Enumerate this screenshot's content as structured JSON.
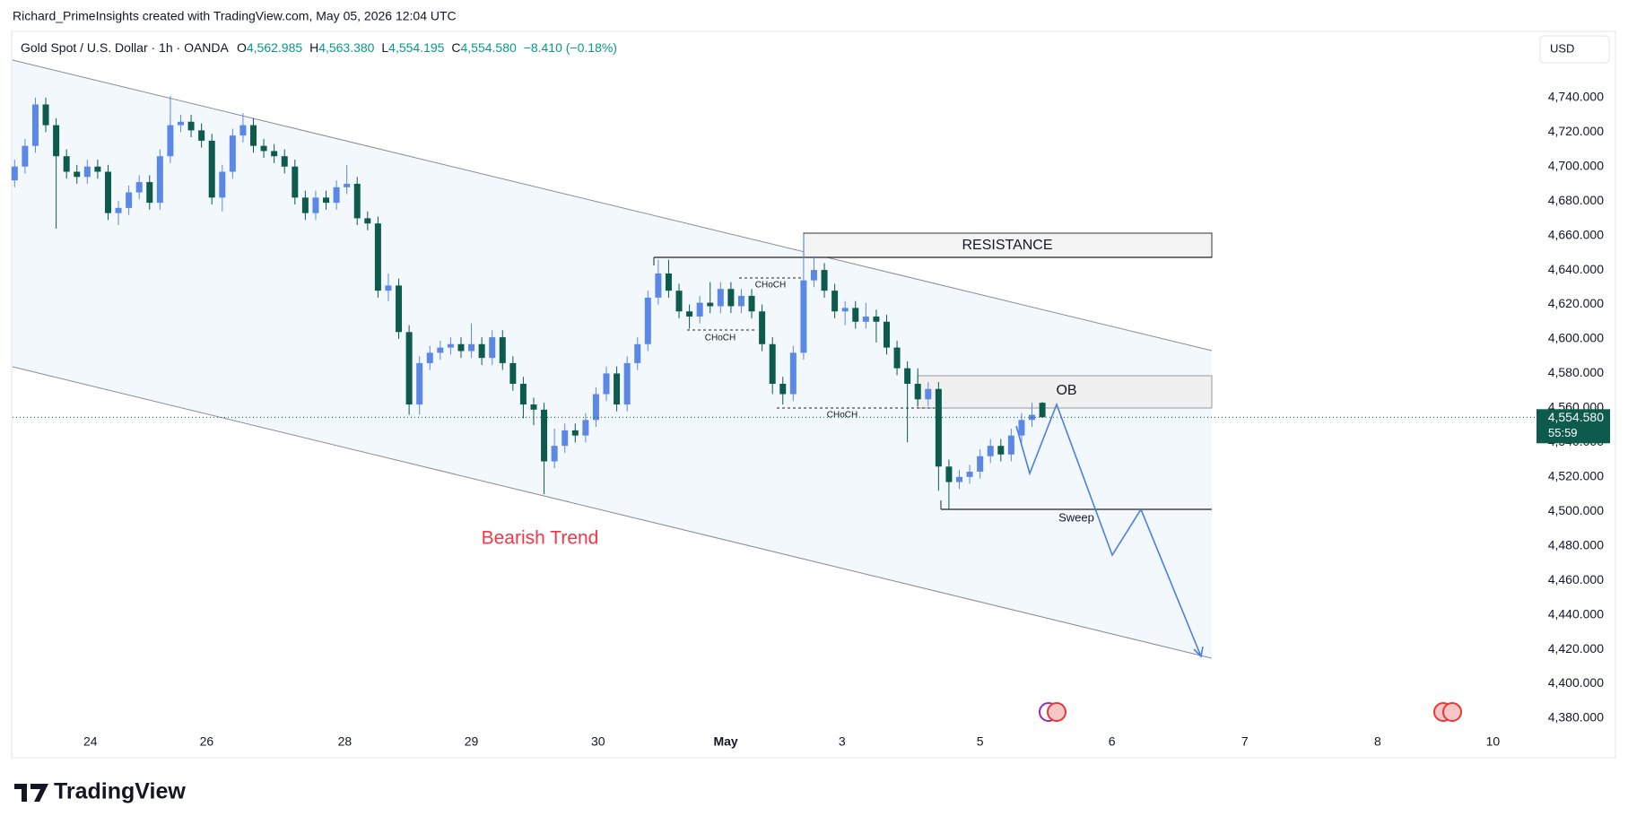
{
  "header": {
    "attribution": "Richard_PrimeInsights created with TradingView.com, May 05, 2026 12:04 UTC",
    "symbol": "Gold Spot / U.S. Dollar · 1h · OANDA",
    "legend": [
      {
        "key": "O",
        "value": "4,562.985"
      },
      {
        "key": "H",
        "value": "4,563.380"
      },
      {
        "key": "L",
        "value": "4,554.195"
      },
      {
        "key": "C",
        "value": "4,554.580"
      }
    ],
    "change": "−8.410 (−0.18%)",
    "currency": "USD",
    "brand": "TradingView"
  },
  "chart_data": {
    "type": "candlestick",
    "up_color": "#5b87e6",
    "down_color": "#0c5b4d",
    "annotations": {
      "resistance": "RESISTANCE",
      "order_block": "OB",
      "choch": [
        "CHoCH",
        "CHoCH",
        "CHoCH"
      ],
      "sweep": "Sweep",
      "trend": "Bearish Trend"
    },
    "last_price_label": "4,554.580",
    "countdown": "55:59",
    "open": [
      4692,
      4700,
      4712,
      4736,
      4724,
      4706,
      4697,
      4694,
      4700,
      4697,
      4673,
      4676,
      4685,
      4691,
      4679,
      4706,
      4724,
      4726,
      4721,
      4715,
      4682,
      4697,
      4718,
      4724,
      4712,
      4709,
      4706,
      4700,
      4682,
      4673,
      4682,
      4679,
      4688,
      4690,
      4670,
      4667,
      4628,
      4631,
      4604,
      4562,
      4586,
      4592,
      4595,
      4597,
      4593,
      4597,
      4589,
      4601,
      4586,
      4574,
      4562,
      4559,
      4529,
      4538,
      4547,
      4544,
      4553,
      4568,
      4580,
      4562,
      4586,
      4597,
      4624,
      4638,
      4628,
      4616,
      4613,
      4621,
      4619,
      4629,
      4619,
      4625,
      4616,
      4597,
      4574,
      4568,
      4592,
      4634,
      4640,
      4628,
      4616,
      4618,
      4610,
      4613,
      4610,
      4595,
      4583,
      4574,
      4565,
      4571,
      4526,
      4517,
      4520,
      4523,
      4532,
      4538,
      4533,
      4544,
      4553,
      4562.985
    ],
    "high": [
      4704,
      4716,
      4740,
      4740,
      4728,
      4710,
      4701,
      4704,
      4704,
      4701,
      4680,
      4689,
      4695,
      4695,
      4710,
      4741,
      4730,
      4730,
      4725,
      4719,
      4701,
      4722,
      4731,
      4728,
      4716,
      4713,
      4710,
      4704,
      4686,
      4686,
      4686,
      4692,
      4701,
      4694,
      4674,
      4671,
      4638,
      4635,
      4608,
      4590,
      4596,
      4599,
      4601,
      4601,
      4609,
      4601,
      4605,
      4605,
      4590,
      4578,
      4566,
      4563,
      4548,
      4551,
      4551,
      4557,
      4572,
      4584,
      4584,
      4590,
      4601,
      4628,
      4646,
      4646,
      4632,
      4620,
      4625,
      4633,
      4633,
      4633,
      4629,
      4629,
      4620,
      4601,
      4578,
      4596,
      4661,
      4648,
      4644,
      4632,
      4622,
      4622,
      4621,
      4617,
      4614,
      4599,
      4587,
      4583,
      4575,
      4575,
      4530,
      4524,
      4527,
      4536,
      4542,
      4542,
      4548,
      4557,
      4563,
      4563.38
    ],
    "low": [
      4688,
      4696,
      4708,
      4720,
      4664,
      4693,
      4690,
      4690,
      4693,
      4669,
      4666,
      4672,
      4681,
      4675,
      4675,
      4702,
      4720,
      4717,
      4711,
      4678,
      4674,
      4693,
      4714,
      4708,
      4705,
      4702,
      4696,
      4678,
      4669,
      4669,
      4675,
      4675,
      4684,
      4666,
      4663,
      4624,
      4622,
      4600,
      4556,
      4556,
      4582,
      4588,
      4591,
      4589,
      4589,
      4585,
      4585,
      4582,
      4570,
      4554,
      4550,
      4510,
      4525,
      4534,
      4540,
      4540,
      4549,
      4564,
      4558,
      4558,
      4582,
      4593,
      4620,
      4624,
      4612,
      4606,
      4609,
      4615,
      4615,
      4615,
      4615,
      4612,
      4593,
      4568,
      4562,
      4564,
      4588,
      4630,
      4624,
      4612,
      4608,
      4606,
      4606,
      4598,
      4591,
      4579,
      4540,
      4561,
      4561,
      4512,
      4501,
      4513,
      4516,
      4519,
      4528,
      4529,
      4529,
      4540,
      4549,
      4554.195
    ],
    "close": [
      4700,
      4712,
      4736,
      4724,
      4706,
      4697,
      4694,
      4700,
      4697,
      4673,
      4676,
      4685,
      4691,
      4679,
      4706,
      4724,
      4726,
      4721,
      4715,
      4682,
      4697,
      4718,
      4724,
      4712,
      4709,
      4706,
      4700,
      4682,
      4673,
      4682,
      4679,
      4688,
      4690,
      4670,
      4667,
      4628,
      4631,
      4604,
      4562,
      4586,
      4592,
      4595,
      4597,
      4593,
      4597,
      4589,
      4601,
      4586,
      4574,
      4562,
      4559,
      4529,
      4538,
      4547,
      4544,
      4553,
      4568,
      4580,
      4562,
      4586,
      4597,
      4624,
      4638,
      4628,
      4616,
      4613,
      4621,
      4619,
      4629,
      4619,
      4625,
      4616,
      4597,
      4574,
      4568,
      4592,
      4634,
      4640,
      4628,
      4616,
      4618,
      4610,
      4613,
      4610,
      4595,
      4583,
      4574,
      4565,
      4571,
      4526,
      4517,
      4520,
      4523,
      4532,
      4538,
      4533,
      4544,
      4553,
      4556,
      4554.58
    ],
    "xlim": [
      -0.2,
      146.6
    ],
    "xticks": [
      {
        "value": 7.3,
        "label": "24"
      },
      {
        "value": 18.5,
        "label": "26"
      },
      {
        "value": 31.8,
        "label": "28"
      },
      {
        "value": 44.0,
        "label": "29"
      },
      {
        "value": 56.2,
        "label": "30"
      },
      {
        "value": 68.5,
        "label": "May"
      },
      {
        "value": 79.7,
        "label": "3"
      },
      {
        "value": 93.0,
        "label": "5"
      },
      {
        "value": 105.7,
        "label": "6"
      },
      {
        "value": 118.5,
        "label": "7"
      },
      {
        "value": 131.3,
        "label": "8"
      },
      {
        "value": 142.4,
        "label": "10"
      }
    ],
    "ylim": [
      4375.3,
      4765.4
    ],
    "yticks": [
      {
        "value": 4380,
        "label": "4,380.000"
      },
      {
        "value": 4400,
        "label": "4,400.000"
      },
      {
        "value": 4420,
        "label": "4,420.000"
      },
      {
        "value": 4440,
        "label": "4,440.000"
      },
      {
        "value": 4460,
        "label": "4,460.000"
      },
      {
        "value": 4480,
        "label": "4,480.000"
      },
      {
        "value": 4500,
        "label": "4,500.000"
      },
      {
        "value": 4520,
        "label": "4,520.000"
      },
      {
        "value": 4540,
        "label": "4,540.000"
      },
      {
        "value": 4560,
        "label": "4,560.000"
      },
      {
        "value": 4580,
        "label": "4,580.000"
      },
      {
        "value": 4600,
        "label": "4,600.000"
      },
      {
        "value": 4620,
        "label": "4,620.000"
      },
      {
        "value": 4640,
        "label": "4,640.000"
      },
      {
        "value": 4660,
        "label": "4,660.000"
      },
      {
        "value": 4680,
        "label": "4,680.000"
      },
      {
        "value": 4700,
        "label": "4,700.000"
      },
      {
        "value": 4720,
        "label": "4,720.000"
      },
      {
        "value": 4740,
        "label": "4,740.000"
      }
    ],
    "grid": false
  }
}
